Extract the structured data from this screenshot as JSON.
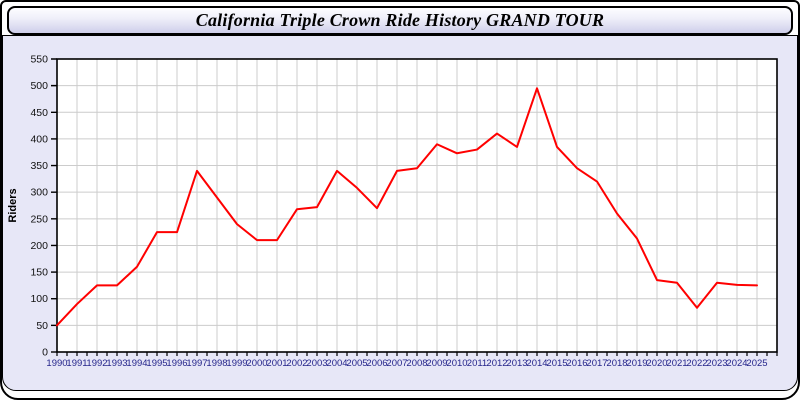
{
  "window": {
    "title": "California Triple Crown Ride History GRAND TOUR"
  },
  "colors": {
    "line": "#FF0000",
    "grid": "#CCCCCC",
    "plot_bg": "#FFFFFF",
    "panel_bg": "#E7E7F7",
    "axis": "#000000",
    "x_tick_label": "#26268C",
    "y_tick_label": "#111111",
    "title_text": "#000000"
  },
  "chart_data": {
    "type": "line",
    "title": "California Triple Crown Ride History GRAND TOUR",
    "xlabel": "",
    "ylabel": "Riders",
    "grid": true,
    "legend": "none",
    "xlim": [
      1990,
      2026
    ],
    "ylim": [
      0,
      550
    ],
    "ytick_step": 50,
    "x": [
      1990,
      1991,
      1992,
      1993,
      1994,
      1995,
      1996,
      1997,
      1998,
      1999,
      2000,
      2001,
      2002,
      2003,
      2004,
      2005,
      2006,
      2007,
      2008,
      2009,
      2010,
      2011,
      2012,
      2013,
      2014,
      2015,
      2016,
      2017,
      2018,
      2019,
      2020,
      2021,
      2022,
      2023,
      2024,
      2025
    ],
    "series": [
      {
        "name": "Riders",
        "color": "#FF0000",
        "values": [
          50,
          90,
          125,
          125,
          160,
          225,
          225,
          340,
          290,
          240,
          210,
          210,
          268,
          272,
          340,
          308,
          270,
          340,
          345,
          390,
          373,
          380,
          410,
          385,
          495,
          385,
          345,
          320,
          260,
          213,
          135,
          130,
          83,
          130,
          126,
          125
        ]
      }
    ]
  }
}
